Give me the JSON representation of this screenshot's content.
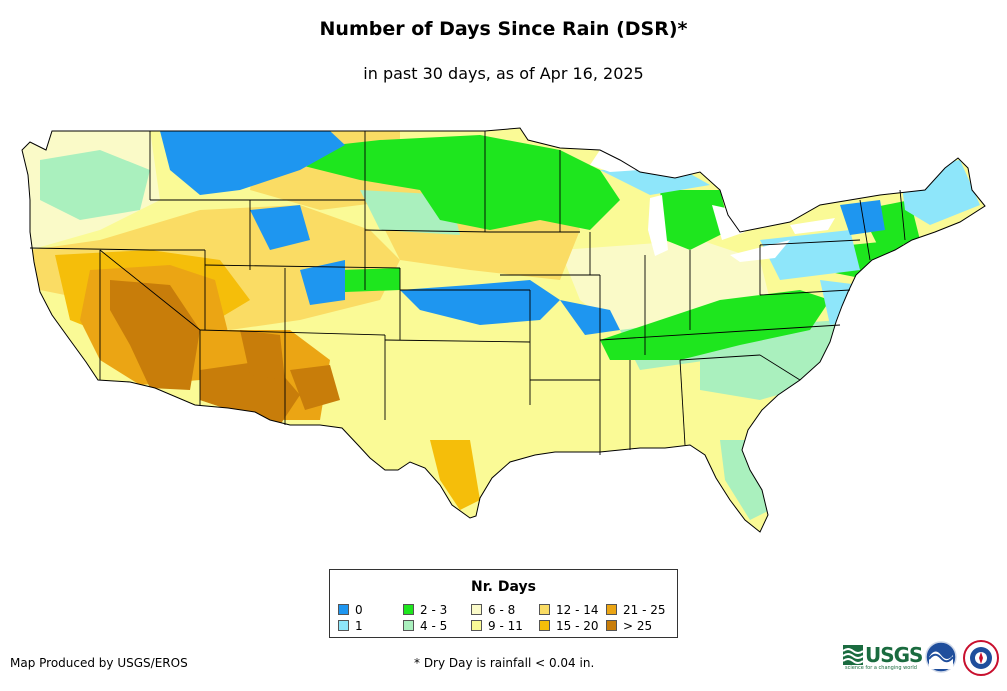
{
  "title": "Number of Days Since Rain (DSR)*",
  "subtitle": "in past 30 days, as of Apr 16, 2025",
  "legend": {
    "title": "Nr. Days",
    "classes": [
      {
        "label": "0",
        "color": "#1e96f0"
      },
      {
        "label": "1",
        "color": "#8ee6fa"
      },
      {
        "label": "2 - 3",
        "color": "#1ee61e"
      },
      {
        "label": "4 - 5",
        "color": "#aaf0be"
      },
      {
        "label": "6 - 8",
        "color": "#fafac8"
      },
      {
        "label": "9 - 11",
        "color": "#fafa96"
      },
      {
        "label": "12 - 14",
        "color": "#fadc64"
      },
      {
        "label": "15 - 20",
        "color": "#f5be0a"
      },
      {
        "label": "21 - 25",
        "color": "#eba514"
      },
      {
        "label": "> 25",
        "color": "#c87d0a"
      }
    ]
  },
  "credit": "Map Produced by USGS/EROS",
  "footnote": "* Dry Day is rainfall < 0.04 in.",
  "logos": {
    "usgs": "USGS",
    "usgs_tagline": "science for a changing world"
  }
}
